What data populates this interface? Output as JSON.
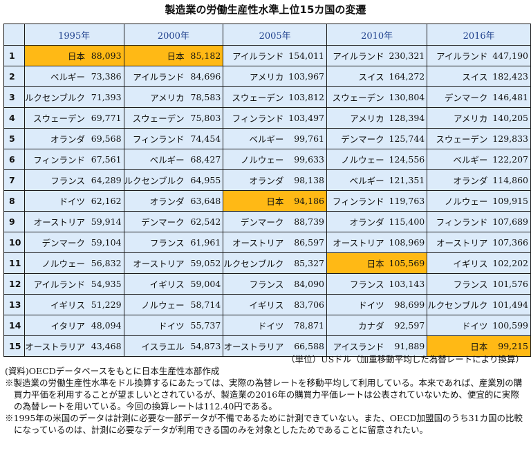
{
  "title": "製造業の労働生産性水準上位15カ国の変遷",
  "headers": [
    "1995年",
    "2000年",
    "2005年",
    "2010年",
    "2016年"
  ],
  "highlight_color": "#ffb915",
  "table_bg": "#dcebfa",
  "rows": [
    {
      "rank": "1",
      "cells": [
        {
          "country": "日本",
          "value": "88,093",
          "hl": true
        },
        {
          "country": "日本",
          "value": "85,182",
          "hl": true
        },
        {
          "country": "アイルランド",
          "value": "154,011"
        },
        {
          "country": "アイルランド",
          "value": "230,321"
        },
        {
          "country": "アイルランド",
          "value": "447,190"
        }
      ]
    },
    {
      "rank": "2",
      "cells": [
        {
          "country": "ベルギー",
          "value": "73,386"
        },
        {
          "country": "アイルランド",
          "value": "84,696"
        },
        {
          "country": "アメリカ",
          "value": "103,967"
        },
        {
          "country": "スイス",
          "value": "164,272"
        },
        {
          "country": "スイス",
          "value": "182,423"
        }
      ]
    },
    {
      "rank": "3",
      "cells": [
        {
          "country": "ルクセンブルク",
          "value": "71,393",
          "small": true
        },
        {
          "country": "アメリカ",
          "value": "78,583"
        },
        {
          "country": "スウェーデン",
          "value": "103,812"
        },
        {
          "country": "スウェーデン",
          "value": "130,804"
        },
        {
          "country": "デンマーク",
          "value": "146,481"
        }
      ]
    },
    {
      "rank": "4",
      "cells": [
        {
          "country": "スウェーデン",
          "value": "69,771"
        },
        {
          "country": "スウェーデン",
          "value": "75,803"
        },
        {
          "country": "フィンランド",
          "value": "103,497"
        },
        {
          "country": "アメリカ",
          "value": "128,394"
        },
        {
          "country": "アメリカ",
          "value": "140,205"
        }
      ]
    },
    {
      "rank": "5",
      "cells": [
        {
          "country": "オランダ",
          "value": "69,568"
        },
        {
          "country": "フィンランド",
          "value": "74,454"
        },
        {
          "country": "ベルギー",
          "value": "99,761"
        },
        {
          "country": "デンマーク",
          "value": "125,744"
        },
        {
          "country": "スウェーデン",
          "value": "129,833"
        }
      ]
    },
    {
      "rank": "6",
      "cells": [
        {
          "country": "フィンランド",
          "value": "67,561"
        },
        {
          "country": "ベルギー",
          "value": "68,427"
        },
        {
          "country": "ノルウェー",
          "value": "99,633"
        },
        {
          "country": "ノルウェー",
          "value": "124,556"
        },
        {
          "country": "ベルギー",
          "value": "122,207"
        }
      ]
    },
    {
      "rank": "7",
      "cells": [
        {
          "country": "フランス",
          "value": "64,289"
        },
        {
          "country": "ルクセンブルク",
          "value": "64,955",
          "small": true
        },
        {
          "country": "オランダ",
          "value": "98,138"
        },
        {
          "country": "ベルギー",
          "value": "121,351"
        },
        {
          "country": "オランダ",
          "value": "114,860"
        }
      ]
    },
    {
      "rank": "8",
      "cells": [
        {
          "country": "ドイツ",
          "value": "62,162"
        },
        {
          "country": "オランダ",
          "value": "63,648"
        },
        {
          "country": "日本",
          "value": "94,186",
          "hl": true
        },
        {
          "country": "フィンランド",
          "value": "119,763"
        },
        {
          "country": "ノルウェー",
          "value": "109,915"
        }
      ]
    },
    {
      "rank": "9",
      "cells": [
        {
          "country": "オーストリア",
          "value": "59,914"
        },
        {
          "country": "デンマーク",
          "value": "62,542"
        },
        {
          "country": "デンマーク",
          "value": "88,739"
        },
        {
          "country": "オランダ",
          "value": "115,400"
        },
        {
          "country": "フィンランド",
          "value": "107,689"
        }
      ]
    },
    {
      "rank": "10",
      "cells": [
        {
          "country": "デンマーク",
          "value": "59,104"
        },
        {
          "country": "フランス",
          "value": "61,961"
        },
        {
          "country": "オーストリア",
          "value": "86,597"
        },
        {
          "country": "オーストリア",
          "value": "108,969"
        },
        {
          "country": "オーストリア",
          "value": "107,366"
        }
      ]
    },
    {
      "rank": "11",
      "cells": [
        {
          "country": "ノルウェー",
          "value": "56,832"
        },
        {
          "country": "オーストリア",
          "value": "59,052"
        },
        {
          "country": "ルクセンブルク",
          "value": "85,327",
          "small": true
        },
        {
          "country": "日本",
          "value": "105,569",
          "hl": true
        },
        {
          "country": "イギリス",
          "value": "102,202"
        }
      ]
    },
    {
      "rank": "12",
      "cells": [
        {
          "country": "アイルランド",
          "value": "54,935"
        },
        {
          "country": "イギリス",
          "value": "59,004"
        },
        {
          "country": "フランス",
          "value": "84,090"
        },
        {
          "country": "フランス",
          "value": "103,143"
        },
        {
          "country": "フランス",
          "value": "101,576"
        }
      ]
    },
    {
      "rank": "13",
      "cells": [
        {
          "country": "イギリス",
          "value": "51,229"
        },
        {
          "country": "ノルウェー",
          "value": "58,714"
        },
        {
          "country": "イギリス",
          "value": "83,706"
        },
        {
          "country": "ドイツ",
          "value": "98,699"
        },
        {
          "country": "ルクセンブルク",
          "value": "101,494",
          "small": true
        }
      ]
    },
    {
      "rank": "14",
      "cells": [
        {
          "country": "イタリア",
          "value": "48,094"
        },
        {
          "country": "ドイツ",
          "value": "55,737"
        },
        {
          "country": "ドイツ",
          "value": "78,871"
        },
        {
          "country": "カナダ",
          "value": "92,597"
        },
        {
          "country": "ドイツ",
          "value": "100,599"
        }
      ]
    },
    {
      "rank": "15",
      "cells": [
        {
          "country": "オーストラリア",
          "value": "43,468"
        },
        {
          "country": "イスラエル",
          "value": "54,873"
        },
        {
          "country": "オーストラリア",
          "value": "66,588"
        },
        {
          "country": "アイスランド",
          "value": "91,889"
        },
        {
          "country": "日本",
          "value": "99,215",
          "hl": true
        }
      ]
    }
  ],
  "unit_note": "（単位）USドル（加重移動平均した為替レートにより換算）",
  "notes": [
    "(資料)OECDデータベースをもとに日本生産性本部作成",
    "※製造業の労働生産性水準をドル換算するにあたっては、実際の為替レートを移動平均して利用している。本来であれば、産業別の購買力平価を利用することが望ましいとされているが、製造業の2016年の購買力平価レートは公表されていないため、便宜的に実際の為替レートを用いている。今回の換算レートは112.40円である。",
    "※1995年の米国のデータは計測に必要な一部データが不備であるために計測できていない。また、OECD加盟国のうち31カ国の比較になっているのは、計測に必要なデータが利用できる国のみを対象としたためであることに留意されたい。"
  ]
}
